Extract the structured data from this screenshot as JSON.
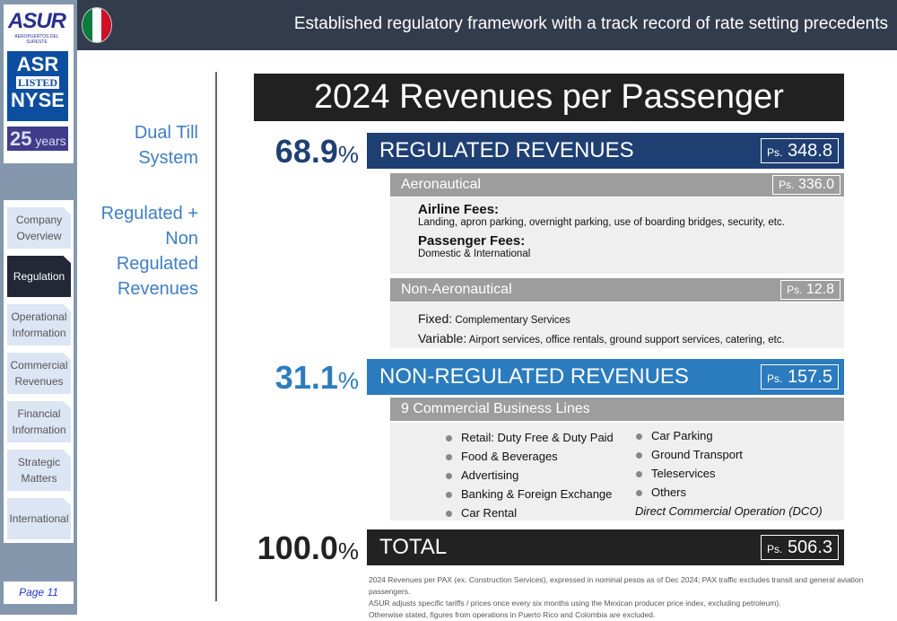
{
  "logo": {
    "name": "ASUR",
    "subtitle": "AEROPUERTOS DEL SURESTE",
    "ticker": "ASR",
    "listed": "LISTED",
    "exchange": "NYSE",
    "years_num": "25",
    "years_label": "years"
  },
  "nav": [
    {
      "label": "Company Overview"
    },
    {
      "label": "Regulation",
      "active": true
    },
    {
      "label": "Operational Information"
    },
    {
      "label": "Commercial Revenues"
    },
    {
      "label": "Financial Information"
    },
    {
      "label": "Strategic Matters"
    },
    {
      "label": "International"
    }
  ],
  "page": "Page 11",
  "header": {
    "title": "Established regulatory framework with a track record of rate setting precedents"
  },
  "side": {
    "l1a": "Dual Till",
    "l1b": "System",
    "l2a": "Regulated +",
    "l2b": "Non Regulated",
    "l2c": "Revenues"
  },
  "main": {
    "title": "2024 Revenues per Passenger",
    "currency": "Ps.",
    "regulated": {
      "pct": "68.9",
      "label": "REGULATED REVENUES",
      "value": "348.8"
    },
    "aero": {
      "label": "Aeronautical",
      "value": "336.0",
      "airline_h": "Airline Fees:",
      "airline_t": "Landing, apron parking, overnight parking, use of boarding bridges, security, etc.",
      "pax_h": "Passenger Fees:",
      "pax_t": "Domestic & International"
    },
    "nonaero": {
      "label": "Non-Aeronautical",
      "value": "12.8",
      "fixed_h": "Fixed:",
      "fixed_t": "Complementary Services",
      "var_h": "Variable:",
      "var_t": "Airport services, office rentals, ground support services, catering, etc."
    },
    "nonregulated": {
      "pct": "31.1",
      "label": "NON-REGULATED REVENUES",
      "value": "157.5"
    },
    "commercial": {
      "label": "9 Commercial Business Lines",
      "left": [
        "Retail: Duty Free & Duty Paid",
        "Food & Beverages",
        "Advertising",
        "Banking & Foreign Exchange",
        "Car Rental"
      ],
      "right": [
        "Car Parking",
        "Ground Transport",
        "Teleservices",
        "Others"
      ],
      "dco": "Direct Commercial Operation (DCO)"
    },
    "total": {
      "pct": "100.0",
      "label": "TOTAL",
      "value": "506.3"
    },
    "pct_sign": "%"
  },
  "footnote": [
    "2024 Revenues per PAX (ex. Construction Services), expressed in nominal pesos as of Dec 2024; PAX traffic excludes transit and general aviation passengers.",
    "ASUR adjusts specific tariffs / prices once every six months using the Mexican producer price index, excluding petroleum).",
    "Otherwise stated, figures from operations in Puerto Rico and Colombia are excluded."
  ]
}
